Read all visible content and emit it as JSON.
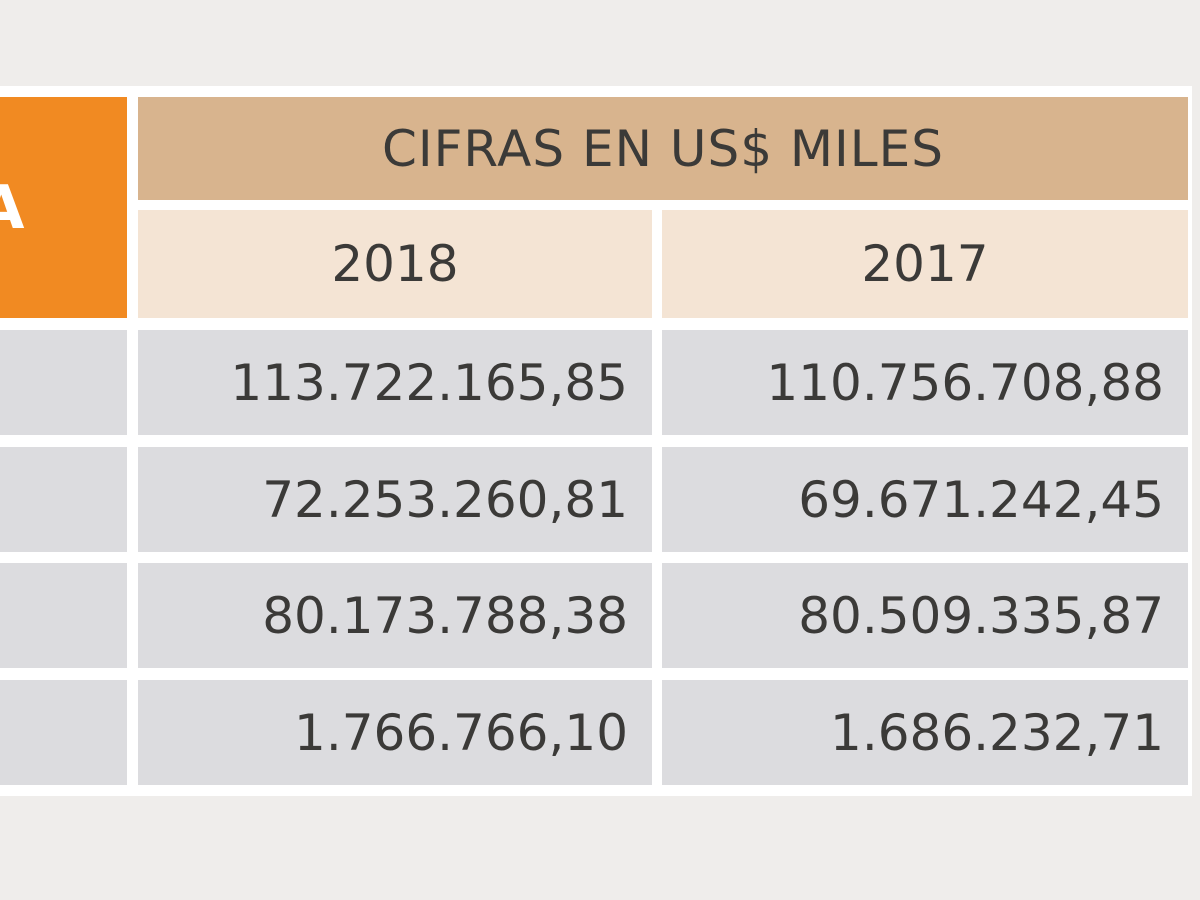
{
  "header": {
    "side_label": "A",
    "title": "CIFRAS EN US$ MILES",
    "years": [
      "2018",
      "2017"
    ]
  },
  "table": {
    "rows": [
      [
        "113.722.165,85",
        "110.756.708,88"
      ],
      [
        "72.253.260,81",
        "69.671.242,45"
      ],
      [
        "80.173.788,38",
        "80.509.335,87"
      ],
      [
        "1.766.766,10",
        "1.686.232,71"
      ]
    ]
  }
}
